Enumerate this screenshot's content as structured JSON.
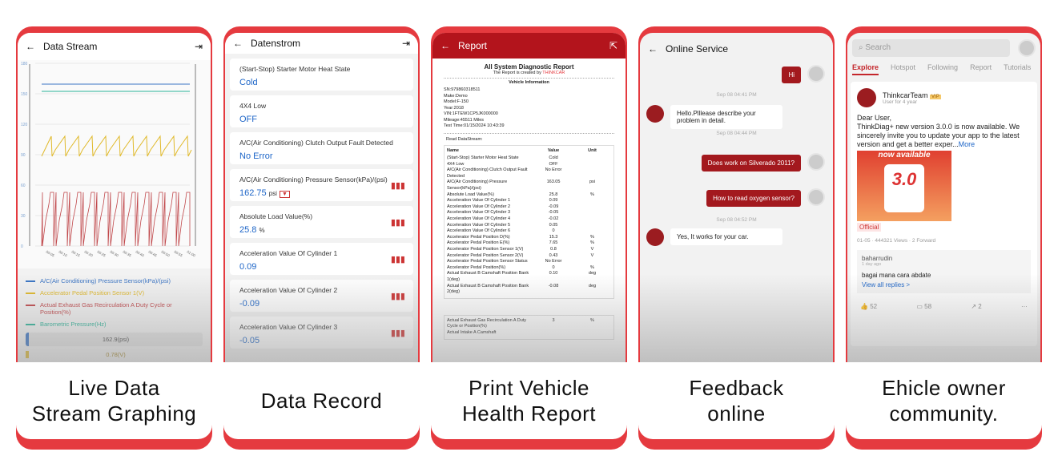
{
  "cards": [
    {
      "caption": "Live Data\nStream Graphing",
      "screen": {
        "title": "Data Stream",
        "legend": [
          {
            "label": "A/C(Air Conditioning) Pressure Sensor(kPa)/(psi)",
            "color": "#3a74c4"
          },
          {
            "label": "Accelerator Pedal Position Sensor 1(V)",
            "color": "#e0b92a"
          },
          {
            "label": "Actual Exhaust Gas Recirculation A Duty Cycle or Position(%)",
            "color": "#c0474a"
          },
          {
            "label": "Barometric Pressure(Hz)",
            "color": "#2ab398"
          }
        ],
        "current_value": "162.9(psi)",
        "next_value": "0.78(V)"
      }
    },
    {
      "caption": "Data Record",
      "screen": {
        "title": "Datenstrom",
        "items": [
          {
            "name": "(Start-Stop) Starter Motor Heat State",
            "value": "Cold"
          },
          {
            "name": "4X4 Low",
            "value": "OFF"
          },
          {
            "name": "A/C(Air Conditioning) Clutch Output Fault Detected",
            "value": "No Error"
          },
          {
            "name": "A/C(Air Conditioning) Pressure Sensor(kPa)/(psi)",
            "value": "162.75",
            "unit": "psi",
            "graph": true
          },
          {
            "name": "Absolute Load Value(%)",
            "value": "25.8",
            "unit": "%",
            "graph": true
          },
          {
            "name": "Acceleration Value Of Cylinder 1",
            "value": "0.09",
            "graph": true
          },
          {
            "name": "Acceleration Value Of Cylinder 2",
            "value": "-0.09",
            "graph": true
          },
          {
            "name": "Acceleration Value Of Cylinder 3",
            "value": "-0.05",
            "graph": true
          }
        ]
      }
    },
    {
      "caption": "Print Vehicle\nHealth Report",
      "screen": {
        "title": "Report",
        "report_title": "All System Diagnostic Report",
        "created_by": "The Report is created by",
        "brand": "THINKCAR",
        "vehicle_info_label": "Vehicle Information",
        "vehicle_info": [
          "SN:979860318511",
          "Make:Demo",
          "Model:F-150",
          "Year:2018",
          "VIN:1FTEW1CP5JK000000",
          "Mileage:45511 Miles",
          "Test Time:01/15/2024 10:43:39"
        ],
        "read_label": "Read DataStream:",
        "columns": [
          "Name",
          "Value",
          "Unit"
        ],
        "rows": [
          [
            "(Start-Stop) Starter Motor Heat State",
            "Cold",
            ""
          ],
          [
            "4X4 Low",
            "OFF",
            ""
          ],
          [
            "A/C(Air Conditioning) Clutch Output Fault Detected",
            "No Error",
            ""
          ],
          [
            "A/C(Air Conditioning) Pressure Sensor(kPa)/(psi)",
            "163.05",
            "psi"
          ],
          [
            "Absolute Load Value(%)",
            "25.8",
            "%"
          ],
          [
            "Acceleration Value Of Cylinder 1",
            "0.09",
            ""
          ],
          [
            "Acceleration Value Of Cylinder 2",
            "-0.09",
            ""
          ],
          [
            "Acceleration Value Of Cylinder 3",
            "-0.05",
            ""
          ],
          [
            "Acceleration Value Of Cylinder 4",
            "-0.02",
            ""
          ],
          [
            "Acceleration Value Of Cylinder 5",
            "0.05",
            ""
          ],
          [
            "Acceleration Value Of Cylinder 6",
            "0",
            ""
          ],
          [
            "Accelerator Pedal Position D(%)",
            "15.3",
            "%"
          ],
          [
            "Accelerator Pedal Position E(%)",
            "7.65",
            "%"
          ],
          [
            "Accelerator Pedal Position Sensor 1(V)",
            "0.8",
            "V"
          ],
          [
            "Accelerator Pedal Position Sensor 2(V)",
            "0.43",
            "V"
          ],
          [
            "Accelerator Pedal Position Sensor Status",
            "No Error",
            ""
          ],
          [
            "Accelerator Pedal Position(%)",
            "0",
            "%"
          ],
          [
            "Actual Exhaust B Camshaft Position Bank 1(deg)",
            "0.10",
            "deg"
          ],
          [
            "Actual Exhaust B Camshaft Position Bank 2(deg)",
            "-0.08",
            "deg"
          ]
        ],
        "rows2": [
          [
            "Actual Exhaust Gas Recirculation A Duty Cycle or Position(%)",
            "3",
            "%"
          ],
          [
            "Actual Intake A Camshaft",
            "",
            ""
          ]
        ]
      }
    },
    {
      "caption": "Feedback\nonline",
      "screen": {
        "title": "Online Service",
        "messages": [
          {
            "from": "user",
            "text": "Hi"
          },
          {
            "time": "Sep 08 04:41 PM"
          },
          {
            "from": "agent",
            "text": "Hello.Plllease describe your problem in detail."
          },
          {
            "time": "Sep 08 04:44 PM"
          },
          {
            "from": "user",
            "text": "Does work on Silverado 2011?"
          },
          {
            "from": "user",
            "text": "How to read oxygen sensor?"
          },
          {
            "time": "Sep 08 04:52 PM"
          },
          {
            "from": "agent",
            "text": "Yes, It works for your car."
          }
        ]
      }
    },
    {
      "caption": "Ehicle owner\ncommunity.",
      "screen": {
        "search_placeholder": "Search",
        "tabs": [
          "Explore",
          "Hotspot",
          "Following",
          "Report",
          "Tutorials"
        ],
        "post": {
          "author": "ThinkcarTeam",
          "badge": "VIP",
          "sub": "User for 4 year",
          "text": "Dear User,\nThinkDiag+ new version 3.0.0 is now available. We sincerely invite you to update your app to the latest version and get a better exper...",
          "more": "More",
          "image_text": "now available",
          "image_big": "3.0",
          "tag": "Official",
          "meta": "01-05 · 444321 Views · 2 Forward",
          "comment": {
            "author": "baharrudin",
            "time": "1 day ago",
            "text": "bagai mana cara abdate",
            "replies": "View all replies >"
          },
          "likes": "52",
          "comments": "58",
          "shares": "2"
        }
      }
    }
  ],
  "chart_data": {
    "type": "line",
    "left_axis_ticks": [
      "0",
      "30",
      "60",
      "90",
      "120",
      "150",
      "180"
    ],
    "x_ticks": [
      "00:05",
      "00:10",
      "00:15",
      "00:20",
      "00:25",
      "00:30",
      "00:35",
      "00:40",
      "00:45",
      "00:50",
      "00:55",
      "01:00"
    ]
  },
  "colors": {
    "accent": "#e53a3f",
    "report_header": "#b3141c",
    "link": "#1e66c8"
  }
}
